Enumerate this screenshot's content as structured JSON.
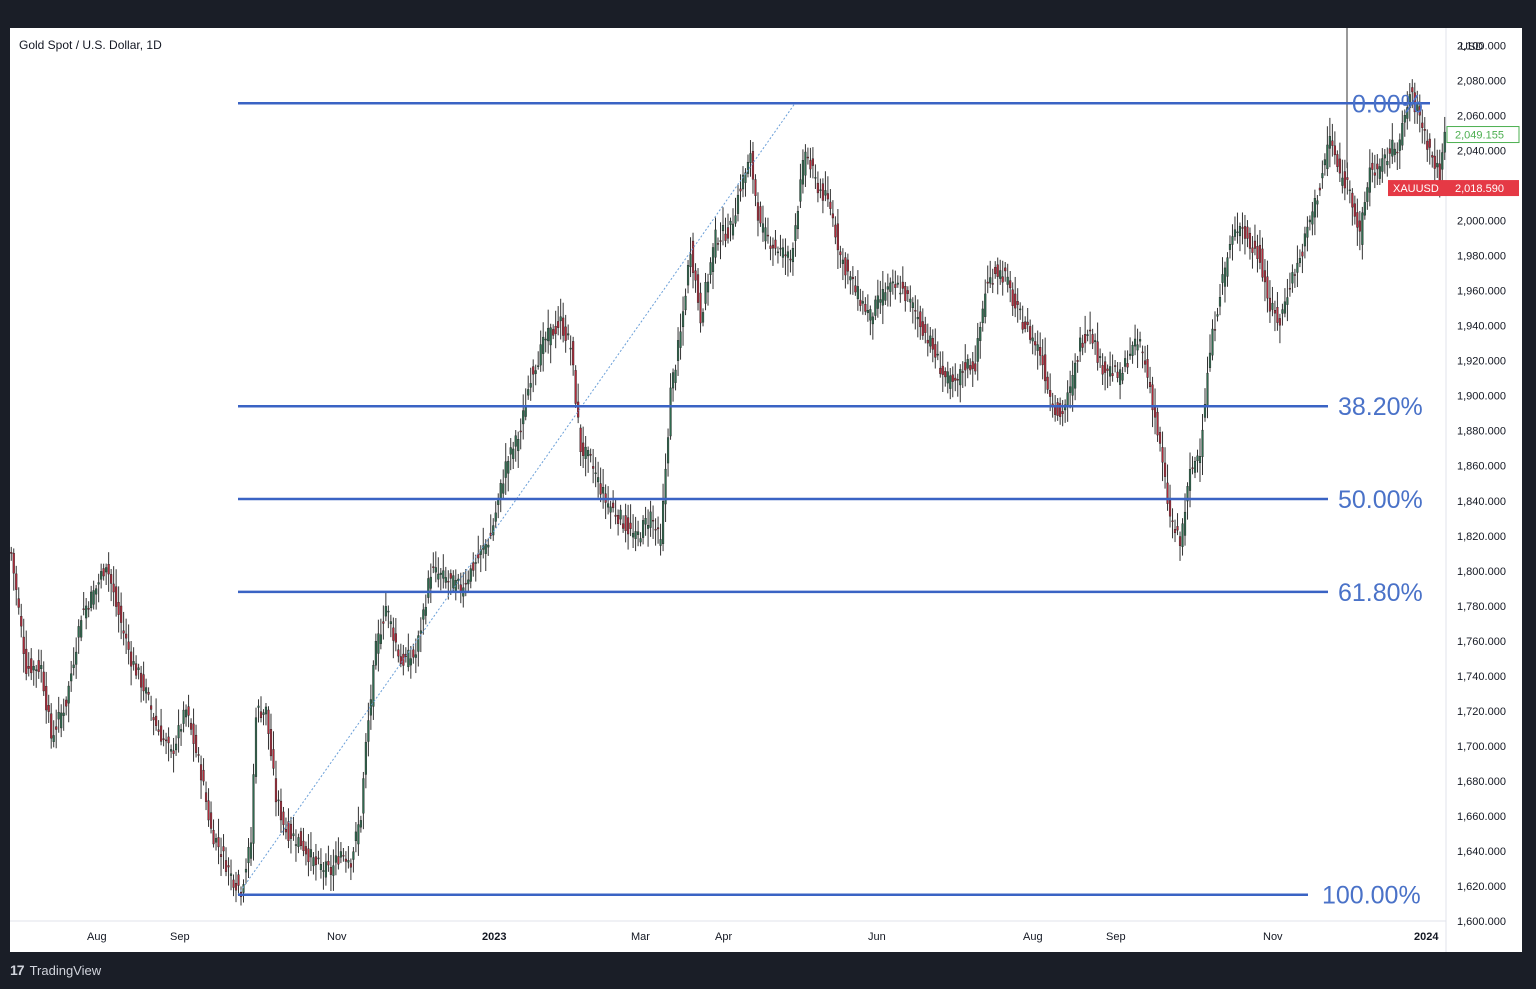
{
  "header": {
    "symbol_title": "Gold Spot / U.S. Dollar, 1D"
  },
  "footer": {
    "brand": "TradingView",
    "logo_glyph": "17"
  },
  "colors": {
    "fib_line": "#3a63c4",
    "fib_text": "#4a72c8",
    "up": "#2f6b4f",
    "down": "#b02a3a",
    "price_green": "#4caf50",
    "price_red": "#e53945"
  },
  "chart_data": {
    "type": "candlestick",
    "title": "Gold Spot / U.S. Dollar, 1D",
    "currency_label": "USD",
    "ylim": [
      1600,
      2110
    ],
    "y_ticks": [
      "1,600.000",
      "1,620.000",
      "1,640.000",
      "1,660.000",
      "1,680.000",
      "1,700.000",
      "1,720.000",
      "1,740.000",
      "1,760.000",
      "1,780.000",
      "1,800.000",
      "1,820.000",
      "1,840.000",
      "1,860.000",
      "1,880.000",
      "1,900.000",
      "1,920.000",
      "1,940.000",
      "1,960.000",
      "1,980.000",
      "2,000.000",
      "2,020.000",
      "2,040.000",
      "2,060.000",
      "2,080.000",
      "2,100.000"
    ],
    "x_ticks": [
      {
        "label": "Aug",
        "bold": false
      },
      {
        "label": "Sep",
        "bold": false
      },
      {
        "label": "Nov",
        "bold": false
      },
      {
        "label": "2023",
        "bold": true
      },
      {
        "label": "Mar",
        "bold": false
      },
      {
        "label": "Apr",
        "bold": false
      },
      {
        "label": "Jun",
        "bold": false
      },
      {
        "label": "Aug",
        "bold": false
      },
      {
        "label": "Sep",
        "bold": false
      },
      {
        "label": "Nov",
        "bold": false
      },
      {
        "label": "2024",
        "bold": true
      }
    ],
    "fib_levels": [
      {
        "label": "0.00%",
        "price": 2067
      },
      {
        "label": "38.20%",
        "price": 1894
      },
      {
        "label": "50.00%",
        "price": 1841
      },
      {
        "label": "61.80%",
        "price": 1788
      },
      {
        "label": "100.00%",
        "price": 1615
      }
    ],
    "fib_anchor": {
      "low": 1615,
      "high": 2067
    },
    "price_labels": [
      {
        "text": "2,049.155",
        "price": 2049.155,
        "style": "outline"
      },
      {
        "symbol": "XAUUSD",
        "text": "2,018.590",
        "price": 2018.59,
        "style": "filled"
      }
    ],
    "path_waypoints": [
      [
        0,
        1810
      ],
      [
        6,
        1745
      ],
      [
        12,
        1745
      ],
      [
        16,
        1705
      ],
      [
        22,
        1725
      ],
      [
        28,
        1775
      ],
      [
        34,
        1790
      ],
      [
        38,
        1805
      ],
      [
        42,
        1780
      ],
      [
        48,
        1750
      ],
      [
        54,
        1730
      ],
      [
        58,
        1712
      ],
      [
        64,
        1695
      ],
      [
        70,
        1720
      ],
      [
        76,
        1685
      ],
      [
        80,
        1652
      ],
      [
        84,
        1640
      ],
      [
        88,
        1626
      ],
      [
        92,
        1618
      ],
      [
        96,
        1645
      ],
      [
        98,
        1720
      ],
      [
        102,
        1720
      ],
      [
        106,
        1670
      ],
      [
        110,
        1652
      ],
      [
        116,
        1645
      ],
      [
        122,
        1632
      ],
      [
        128,
        1628
      ],
      [
        132,
        1640
      ],
      [
        136,
        1635
      ],
      [
        140,
        1660
      ],
      [
        142,
        1700
      ],
      [
        146,
        1755
      ],
      [
        150,
        1780
      ],
      [
        156,
        1748
      ],
      [
        162,
        1752
      ],
      [
        168,
        1800
      ],
      [
        174,
        1795
      ],
      [
        180,
        1790
      ],
      [
        186,
        1805
      ],
      [
        192,
        1820
      ],
      [
        198,
        1860
      ],
      [
        204,
        1880
      ],
      [
        208,
        1912
      ],
      [
        214,
        1932
      ],
      [
        220,
        1942
      ],
      [
        224,
        1928
      ],
      [
        228,
        1870
      ],
      [
        232,
        1862
      ],
      [
        238,
        1840
      ],
      [
        244,
        1830
      ],
      [
        250,
        1818
      ],
      [
        256,
        1832
      ],
      [
        260,
        1815
      ],
      [
        264,
        1902
      ],
      [
        268,
        1935
      ],
      [
        272,
        1985
      ],
      [
        276,
        1945
      ],
      [
        282,
        1990
      ],
      [
        288,
        1995
      ],
      [
        292,
        2020
      ],
      [
        296,
        2035
      ],
      [
        300,
        1995
      ],
      [
        306,
        1985
      ],
      [
        312,
        1978
      ],
      [
        318,
        2040
      ],
      [
        322,
        2022
      ],
      [
        328,
        2008
      ],
      [
        332,
        1980
      ],
      [
        338,
        1960
      ],
      [
        344,
        1945
      ],
      [
        350,
        1960
      ],
      [
        356,
        1962
      ],
      [
        362,
        1948
      ],
      [
        368,
        1930
      ],
      [
        374,
        1910
      ],
      [
        378,
        1905
      ],
      [
        382,
        1918
      ],
      [
        386,
        1918
      ],
      [
        390,
        1960
      ],
      [
        394,
        1972
      ],
      [
        398,
        1968
      ],
      [
        402,
        1950
      ],
      [
        406,
        1940
      ],
      [
        412,
        1925
      ],
      [
        416,
        1900
      ],
      [
        420,
        1888
      ],
      [
        424,
        1902
      ],
      [
        428,
        1930
      ],
      [
        432,
        1940
      ],
      [
        436,
        1918
      ],
      [
        440,
        1915
      ],
      [
        444,
        1910
      ],
      [
        448,
        1925
      ],
      [
        452,
        1930
      ],
      [
        456,
        1905
      ],
      [
        460,
        1870
      ],
      [
        464,
        1830
      ],
      [
        468,
        1815
      ],
      [
        472,
        1855
      ],
      [
        476,
        1870
      ],
      [
        480,
        1925
      ],
      [
        484,
        1960
      ],
      [
        488,
        1985
      ],
      [
        492,
        2000
      ],
      [
        496,
        1985
      ],
      [
        500,
        1980
      ],
      [
        504,
        1950
      ],
      [
        508,
        1942
      ],
      [
        512,
        1965
      ],
      [
        516,
        1978
      ],
      [
        520,
        2000
      ],
      [
        524,
        2020
      ],
      [
        528,
        2048
      ],
      [
        532,
        2025
      ],
      [
        536,
        2020
      ],
      [
        540,
        1990
      ],
      [
        544,
        2030
      ],
      [
        548,
        2028
      ],
      [
        552,
        2040
      ],
      [
        556,
        2045
      ],
      [
        560,
        2072
      ],
      [
        564,
        2060
      ],
      [
        568,
        2040
      ],
      [
        572,
        2025
      ],
      [
        574,
        2049
      ]
    ]
  }
}
